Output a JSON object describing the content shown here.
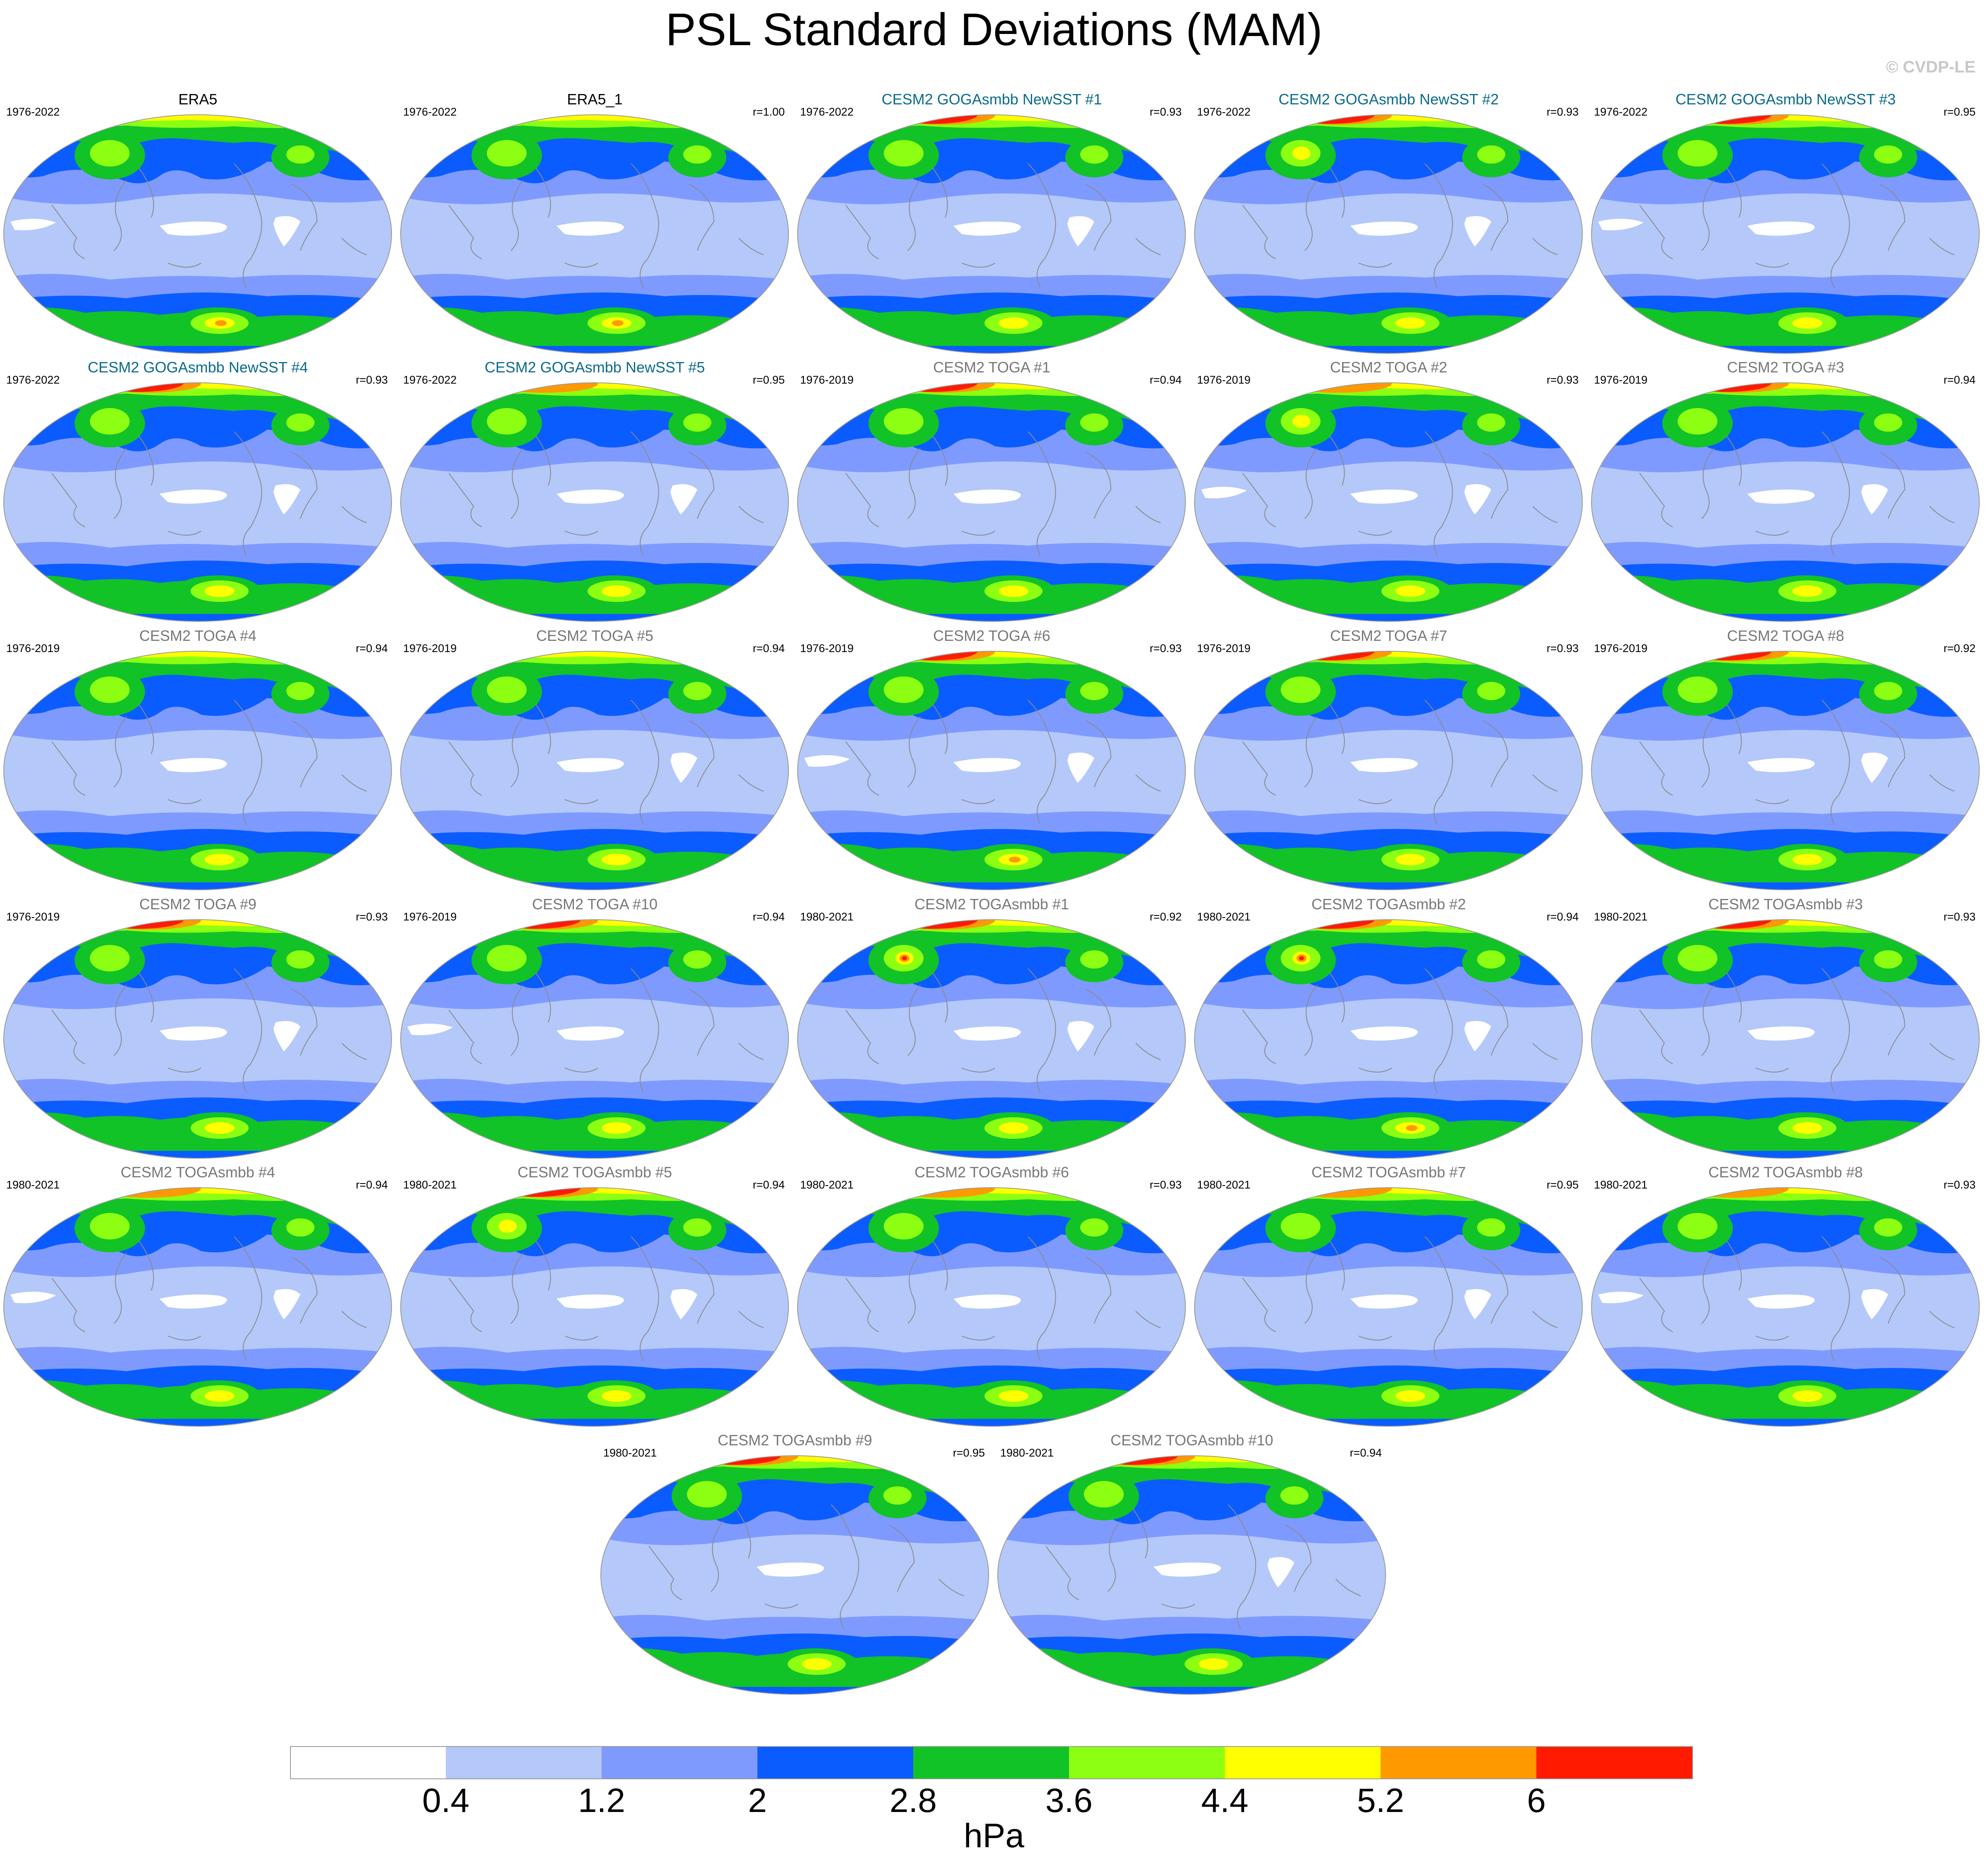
{
  "title": "PSL Standard Deviations (MAM)",
  "copyright": "© CVDP-LE",
  "palette": {
    "white": "#ffffff",
    "light_blue": "#b4c8fa",
    "mid_blue": "#7f9aff",
    "blue": "#0a5cff",
    "green": "#11c326",
    "lime": "#8cff12",
    "yellow": "#ffff00",
    "orange": "#ff9900",
    "red": "#ff1a00",
    "coast": "#8a8a8a",
    "obs_title": "#000000",
    "newsst_title": "#0a6a8a",
    "model_title": "#777777"
  },
  "colorbar": {
    "colors": [
      "#ffffff",
      "#b4c8fa",
      "#7f9aff",
      "#0a5cff",
      "#11c326",
      "#8cff12",
      "#ffff00",
      "#ff9900",
      "#ff1a00"
    ],
    "ticks": [
      "0.4",
      "1.2",
      "2",
      "2.8",
      "3.6",
      "4.4",
      "5.2",
      "6"
    ],
    "unit": "hPa"
  },
  "panels": [
    {
      "title": "ERA5",
      "years": "1976-2022",
      "r": "",
      "group": "obs",
      "nh": 0,
      "nhc": 1,
      "sh": 2
    },
    {
      "title": "ERA5_1",
      "years": "1976-2022",
      "r": "r=1.00",
      "group": "obs",
      "nh": 0,
      "nhc": 1,
      "sh": 2
    },
    {
      "title": "CESM2 GOGAsmbb NewSST #1",
      "years": "1976-2022",
      "r": "r=0.93",
      "group": "newsst",
      "nh": 3,
      "nhc": 1,
      "sh": 1
    },
    {
      "title": "CESM2 GOGAsmbb NewSST #2",
      "years": "1976-2022",
      "r": "r=0.93",
      "group": "newsst",
      "nh": 3,
      "nhc": 2,
      "sh": 1
    },
    {
      "title": "CESM2 GOGAsmbb NewSST #3",
      "years": "1976-2022",
      "r": "r=0.95",
      "group": "newsst",
      "nh": 3,
      "nhc": 1,
      "sh": 1
    },
    {
      "title": "CESM2 GOGAsmbb NewSST #4",
      "years": "1976-2022",
      "r": "r=0.93",
      "group": "newsst",
      "nh": 3,
      "nhc": 1,
      "sh": 1
    },
    {
      "title": "CESM2 GOGAsmbb NewSST #5",
      "years": "1976-2022",
      "r": "r=0.95",
      "group": "newsst",
      "nh": 2,
      "nhc": 1,
      "sh": 1
    },
    {
      "title": "CESM2 TOGA #1",
      "years": "1976-2019",
      "r": "r=0.94",
      "group": "model",
      "nh": 3,
      "nhc": 1,
      "sh": 1
    },
    {
      "title": "CESM2 TOGA #2",
      "years": "1976-2019",
      "r": "r=0.93",
      "group": "model",
      "nh": 2,
      "nhc": 2,
      "sh": 1
    },
    {
      "title": "CESM2 TOGA #3",
      "years": "1976-2019",
      "r": "r=0.94",
      "group": "model",
      "nh": 3,
      "nhc": 1,
      "sh": 1
    },
    {
      "title": "CESM2 TOGA #4",
      "years": "1976-2019",
      "r": "r=0.94",
      "group": "model",
      "nh": 1,
      "nhc": 1,
      "sh": 1
    },
    {
      "title": "CESM2 TOGA #5",
      "years": "1976-2019",
      "r": "r=0.94",
      "group": "model",
      "nh": 1,
      "nhc": 1,
      "sh": 0
    },
    {
      "title": "CESM2 TOGA #6",
      "years": "1976-2019",
      "r": "r=0.93",
      "group": "model",
      "nh": 3,
      "nhc": 1,
      "sh": 2
    },
    {
      "title": "CESM2 TOGA #7",
      "years": "1976-2019",
      "r": "r=0.93",
      "group": "model",
      "nh": 3,
      "nhc": 1,
      "sh": 1
    },
    {
      "title": "CESM2 TOGA #8",
      "years": "1976-2019",
      "r": "r=0.92",
      "group": "model",
      "nh": 3,
      "nhc": 1,
      "sh": 1
    },
    {
      "title": "CESM2 TOGA #9",
      "years": "1976-2019",
      "r": "r=0.93",
      "group": "model",
      "nh": 3,
      "nhc": 1,
      "sh": 1
    },
    {
      "title": "CESM2 TOGA #10",
      "years": "1976-2019",
      "r": "r=0.94",
      "group": "model",
      "nh": 3,
      "nhc": 1,
      "sh": 1
    },
    {
      "title": "CESM2 TOGAsmbb #1",
      "years": "1980-2021",
      "r": "r=0.92",
      "group": "model",
      "nh": 3,
      "nhc": 3,
      "sh": 1
    },
    {
      "title": "CESM2 TOGAsmbb #2",
      "years": "1980-2021",
      "r": "r=0.94",
      "group": "model",
      "nh": 3,
      "nhc": 3,
      "sh": 2
    },
    {
      "title": "CESM2 TOGAsmbb #3",
      "years": "1980-2021",
      "r": "r=0.93",
      "group": "model",
      "nh": 3,
      "nhc": 1,
      "sh": 1
    },
    {
      "title": "CESM2 TOGAsmbb #4",
      "years": "1980-2021",
      "r": "r=0.94",
      "group": "model",
      "nh": 2,
      "nhc": 1,
      "sh": 1
    },
    {
      "title": "CESM2 TOGAsmbb #5",
      "years": "1980-2021",
      "r": "r=0.94",
      "group": "model",
      "nh": 3,
      "nhc": 2,
      "sh": 1
    },
    {
      "title": "CESM2 TOGAsmbb #6",
      "years": "1980-2021",
      "r": "r=0.93",
      "group": "model",
      "nh": 2,
      "nhc": 1,
      "sh": 1
    },
    {
      "title": "CESM2 TOGAsmbb #7",
      "years": "1980-2021",
      "r": "r=0.95",
      "group": "model",
      "nh": 2,
      "nhc": 1,
      "sh": 1
    },
    {
      "title": "CESM2 TOGAsmbb #8",
      "years": "1980-2021",
      "r": "r=0.93",
      "group": "model",
      "nh": 2,
      "nhc": 1,
      "sh": 1
    },
    {
      "title": "CESM2 TOGAsmbb #9",
      "years": "1980-2021",
      "r": "r=0.95",
      "group": "model",
      "nh": 3,
      "nhc": 1,
      "sh": 1
    },
    {
      "title": "CESM2 TOGAsmbb #10",
      "years": "1980-2021",
      "r": "r=0.94",
      "group": "model",
      "nh": 3,
      "nhc": 1,
      "sh": 1
    }
  ]
}
